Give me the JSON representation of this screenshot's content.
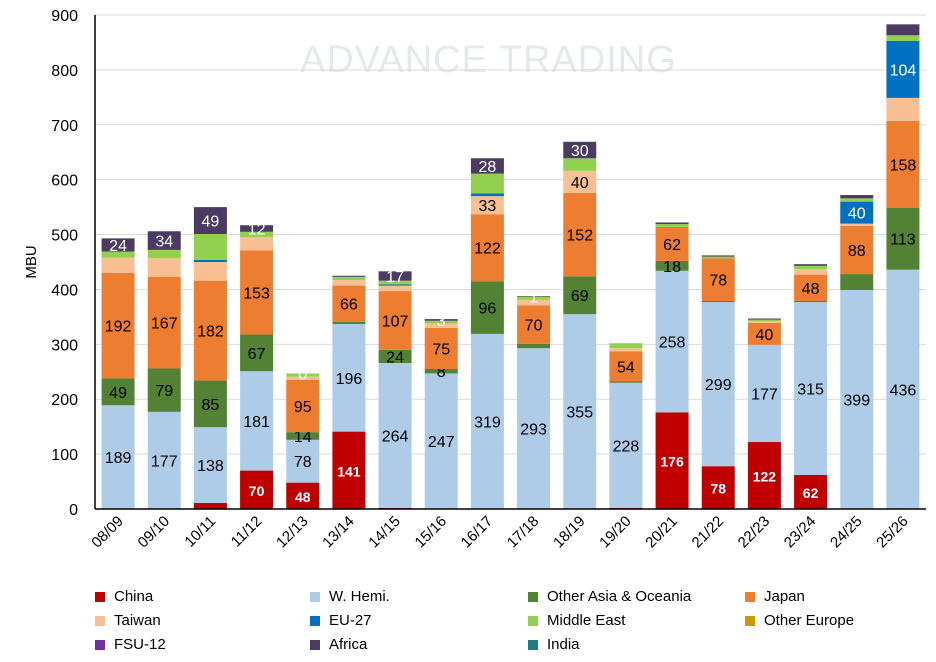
{
  "chart_data": {
    "type": "bar",
    "stacked": true,
    "ylabel": "MBU",
    "xlabel": "",
    "ylim": [
      0,
      900
    ],
    "yticks": [
      0,
      100,
      200,
      300,
      400,
      500,
      600,
      700,
      800,
      900
    ],
    "grid": true,
    "legend_position": "bottom",
    "categories": [
      "08/09",
      "09/10",
      "10/11",
      "11/12",
      "12/13",
      "13/14",
      "14/15",
      "15/16",
      "16/17",
      "17/18",
      "18/19",
      "19/20",
      "20/21",
      "21/22",
      "22/23",
      "23/24",
      "24/25",
      "25/26"
    ],
    "series": [
      {
        "name": "China",
        "color": "#c00000",
        "label_color": "#ffffff",
        "values": [
          0,
          0,
          11,
          70,
          48,
          141,
          2,
          0,
          0,
          0,
          0,
          2,
          176,
          78,
          122,
          62,
          0,
          0
        ],
        "labels": [
          null,
          null,
          null,
          "70",
          "48",
          "141",
          null,
          null,
          null,
          null,
          null,
          null,
          "176",
          "78",
          "122",
          "62",
          null,
          null
        ]
      },
      {
        "name": "W. Hemi.",
        "color": "#aecbe8",
        "label_color": "#000000",
        "values": [
          189,
          177,
          138,
          181,
          78,
          196,
          264,
          247,
          319,
          293,
          355,
          228,
          258,
          299,
          177,
          315,
          399,
          436
        ],
        "labels": [
          "189",
          "177",
          "138",
          "181",
          "78",
          "196",
          "264",
          "247",
          "319",
          "293",
          "355",
          "228",
          "258",
          "299",
          "177",
          "315",
          "399",
          "436"
        ]
      },
      {
        "name": "Other Asia & Oceania",
        "color": "#548235",
        "label_color": "#000000",
        "values": [
          49,
          79,
          85,
          67,
          14,
          4,
          24,
          8,
          96,
          8,
          69,
          3,
          18,
          2,
          0,
          2,
          29,
          113
        ],
        "labels": [
          "49",
          "79",
          "85",
          "67",
          "14",
          null,
          "24",
          "8",
          "96",
          null,
          "69",
          null,
          "18",
          null,
          null,
          null,
          null,
          "113"
        ]
      },
      {
        "name": "Japan",
        "color": "#ed7d31",
        "label_color": "#000000",
        "values": [
          192,
          167,
          182,
          153,
          95,
          66,
          107,
          75,
          122,
          70,
          152,
          54,
          62,
          78,
          40,
          48,
          88,
          158
        ],
        "labels": [
          "192",
          "167",
          "182",
          "153",
          "95",
          "66",
          "107",
          "75",
          "122",
          "70",
          "152",
          "54",
          "62",
          "78",
          "40",
          "48",
          "88",
          "158"
        ]
      },
      {
        "name": "Taiwan",
        "color": "#f8bf92",
        "label_color": "#000000",
        "values": [
          28,
          34,
          34,
          24,
          6,
          10,
          10,
          8,
          33,
          10,
          40,
          6,
          0,
          0,
          3,
          10,
          4,
          42
        ],
        "labels": [
          null,
          null,
          null,
          null,
          null,
          null,
          null,
          null,
          "33",
          null,
          "40",
          null,
          null,
          null,
          null,
          null,
          null,
          null
        ]
      },
      {
        "name": "EU-27",
        "color": "#0070c0",
        "label_color": "#ffffff",
        "values": [
          0,
          0,
          4,
          0,
          0,
          0,
          2,
          0,
          5,
          0,
          0,
          0,
          0,
          0,
          0,
          0,
          40,
          104
        ],
        "labels": [
          null,
          null,
          null,
          null,
          null,
          null,
          null,
          null,
          null,
          null,
          null,
          null,
          null,
          null,
          null,
          null,
          "40",
          "104"
        ]
      },
      {
        "name": "Middle East",
        "color": "#92d050",
        "label_color": "#000000",
        "values": [
          11,
          15,
          47,
          10,
          6,
          6,
          7,
          5,
          36,
          6,
          23,
          9,
          5,
          3,
          3,
          6,
          6,
          10
        ],
        "labels": [
          null,
          null,
          null,
          null,
          null,
          null,
          null,
          null,
          null,
          null,
          null,
          null,
          null,
          null,
          null,
          null,
          null,
          null
        ]
      },
      {
        "name": "Other Europe",
        "color": "#c99a00",
        "label_color": "#000000",
        "values": [
          0,
          0,
          0,
          0,
          0,
          0,
          0,
          0,
          0,
          0,
          0,
          0,
          0,
          0,
          0,
          0,
          0,
          0
        ],
        "labels": [
          null,
          null,
          null,
          null,
          null,
          null,
          null,
          null,
          null,
          null,
          null,
          null,
          null,
          null,
          null,
          null,
          null,
          null
        ]
      },
      {
        "name": "FSU-12",
        "color": "#7030a0",
        "label_color": "#ffffff",
        "values": [
          0,
          0,
          0,
          0,
          0,
          0,
          0,
          0,
          0,
          0,
          0,
          0,
          0,
          0,
          0,
          0,
          0,
          0
        ],
        "labels": [
          null,
          null,
          null,
          null,
          null,
          null,
          null,
          null,
          null,
          null,
          null,
          null,
          null,
          null,
          null,
          null,
          null,
          null
        ]
      },
      {
        "name": "Africa",
        "color": "#4b3b62",
        "label_color": "#ffffff",
        "values": [
          24,
          34,
          49,
          12,
          0,
          2,
          17,
          3,
          28,
          1,
          30,
          0,
          3,
          2,
          2,
          3,
          6,
          20
        ],
        "labels": [
          "24",
          "34",
          "49",
          "12",
          "0",
          null,
          "17",
          "3",
          "28",
          "1",
          "30",
          null,
          null,
          null,
          null,
          null,
          null,
          null
        ]
      },
      {
        "name": "India",
        "color": "#1f7a86",
        "label_color": "#ffffff",
        "values": [
          0,
          0,
          0,
          0,
          0,
          0,
          0,
          0,
          0,
          0,
          0,
          0,
          0,
          0,
          0,
          0,
          0,
          0
        ],
        "labels": [
          null,
          null,
          null,
          null,
          null,
          null,
          null,
          null,
          null,
          null,
          null,
          null,
          null,
          null,
          null,
          null,
          null,
          null
        ]
      }
    ]
  },
  "watermark": "ADVANCE TRADING"
}
